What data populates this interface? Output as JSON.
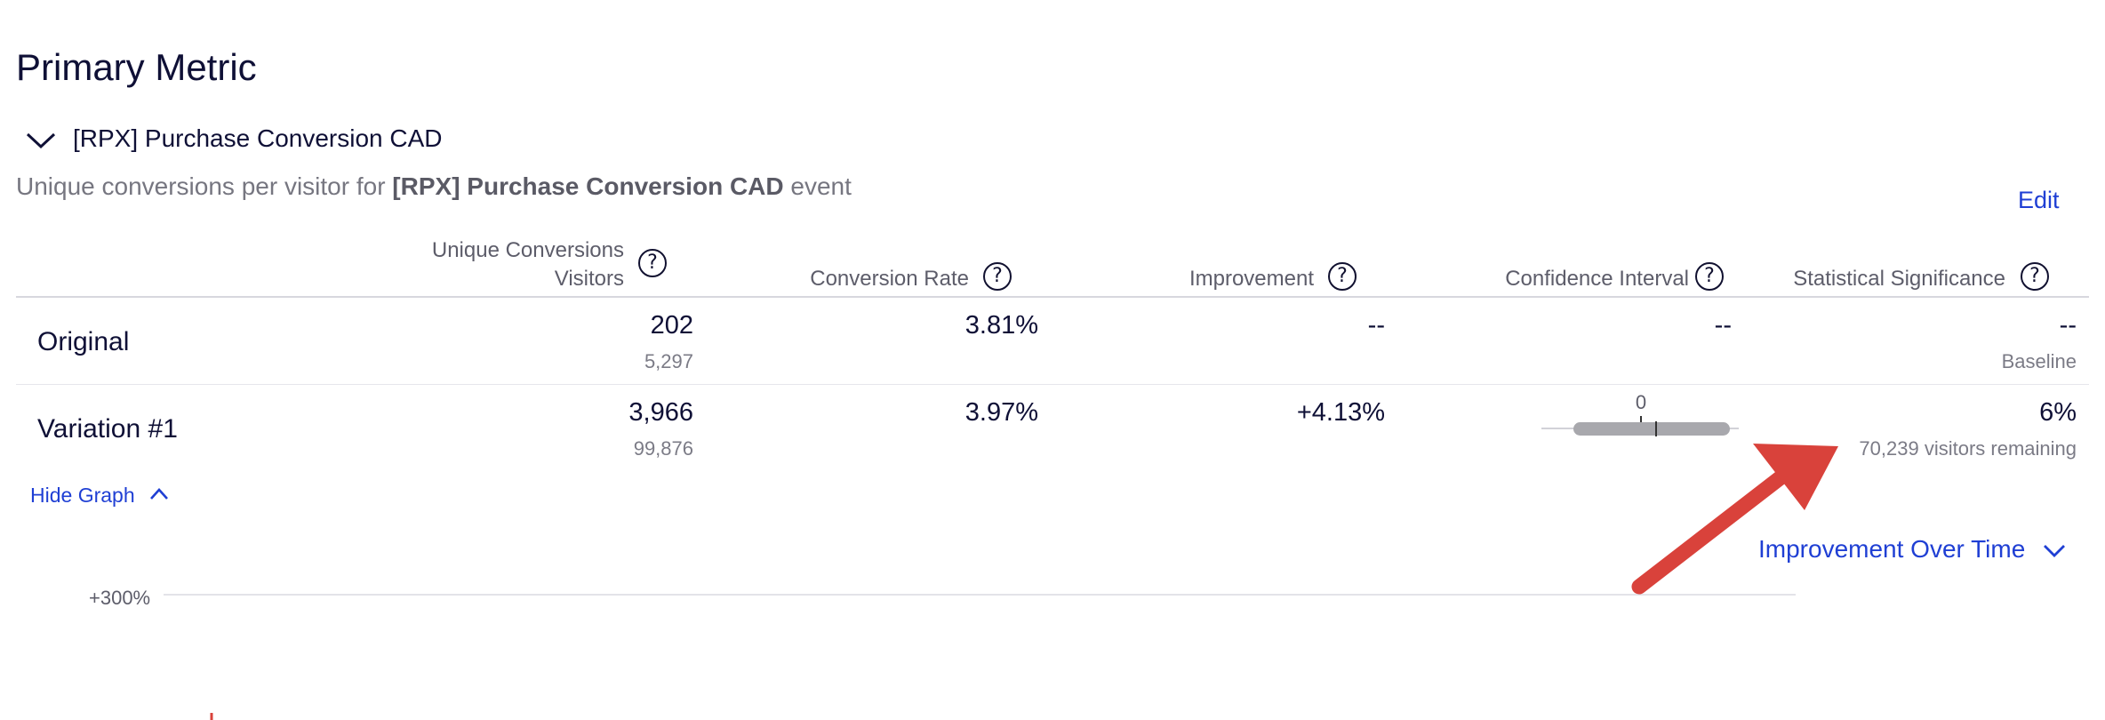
{
  "section_title": "Primary Metric",
  "metric": {
    "name": "[RPX] Purchase Conversion CAD",
    "description_prefix": "Unique conversions per visitor for ",
    "description_bold": "[RPX] Purchase Conversion CAD",
    "description_suffix": " event",
    "edit_label": "Edit"
  },
  "table": {
    "headers": {
      "conversions_line1": "Unique Conversions",
      "conversions_line2": "Visitors",
      "conversion_rate": "Conversion Rate",
      "improvement": "Improvement",
      "confidence_interval": "Confidence Interval",
      "statistical_significance": "Statistical Significance"
    },
    "help_glyph": "?",
    "rows": [
      {
        "label": "Original",
        "conversions": "202",
        "visitors": "5,297",
        "conversion_rate": "3.81%",
        "improvement": "--",
        "confidence_interval": "--",
        "significance": "--",
        "significance_note": "Baseline"
      },
      {
        "label": "Variation #1",
        "conversions": "3,966",
        "visitors": "99,876",
        "conversion_rate": "3.97%",
        "improvement": "+4.13%",
        "ci_zero_label": "0",
        "significance": "6%",
        "significance_note": "70,239 visitors remaining"
      }
    ]
  },
  "graph": {
    "toggle_label": "Hide Graph",
    "view_label": "Improvement Over Time",
    "y_tick": "+300%"
  },
  "icons": {
    "chevron_down": "chevron-down-icon",
    "chevron_up": "chevron-up-icon",
    "help": "help-circle-icon"
  },
  "colors": {
    "link": "#1f3fd4",
    "annotation_arrow": "#d9423b",
    "ci_bar": "#a8a8ad"
  }
}
